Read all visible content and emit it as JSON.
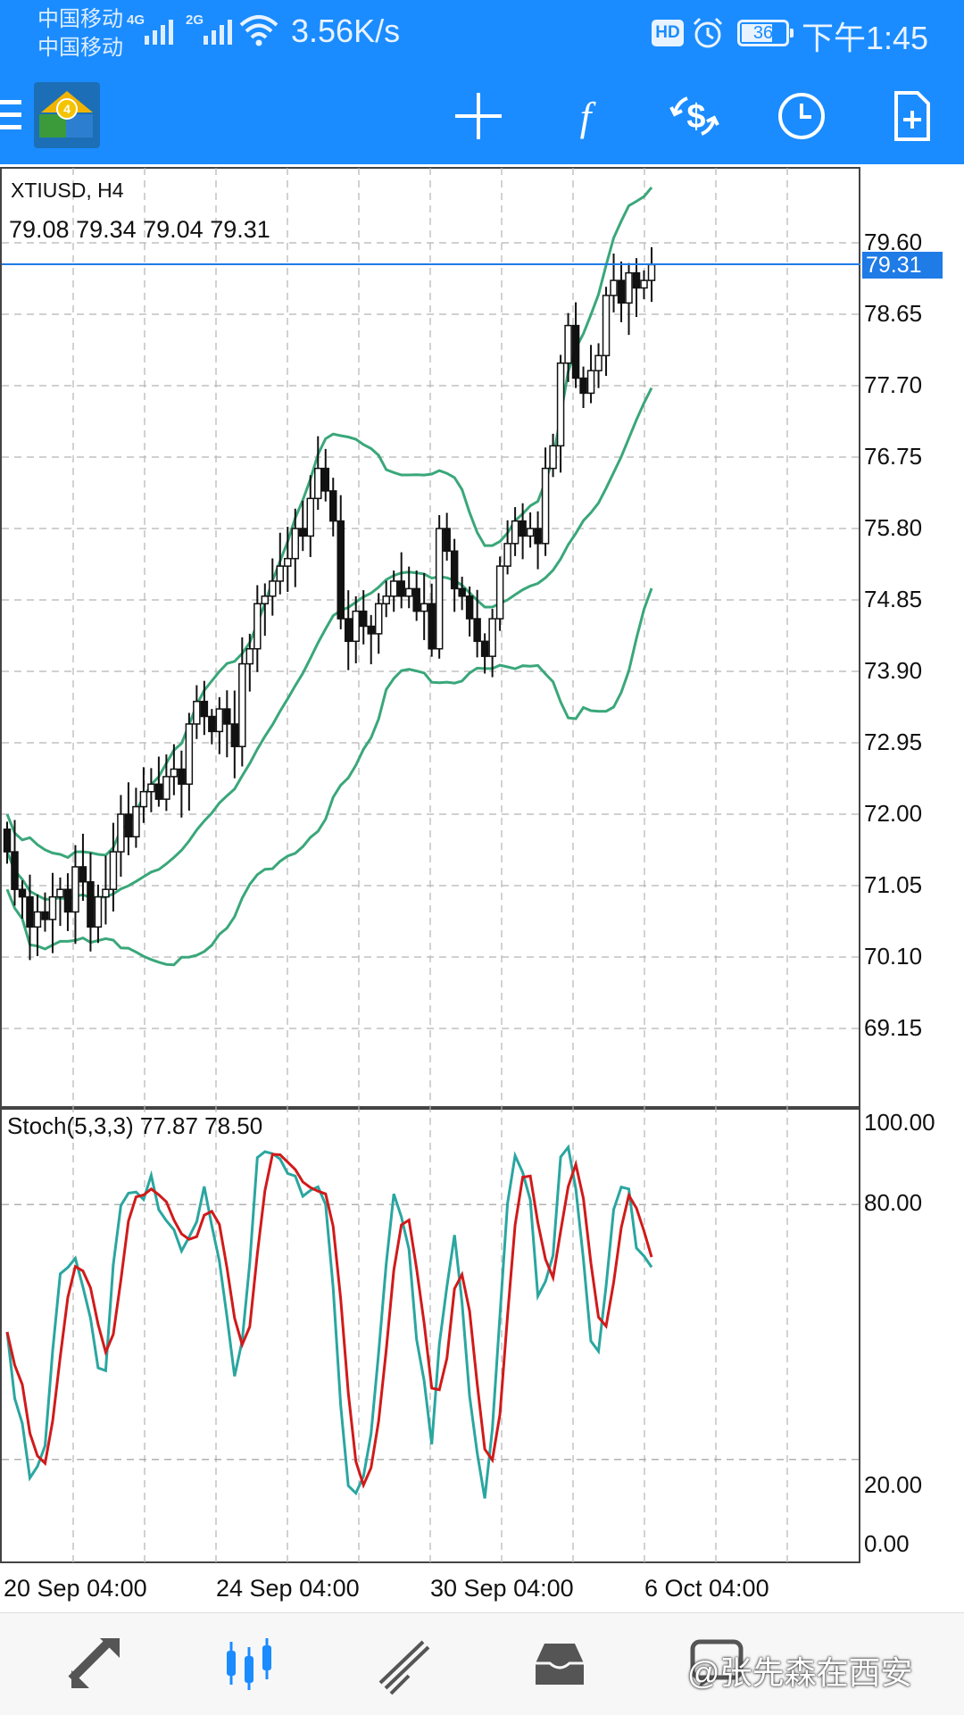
{
  "status_bar": {
    "carrier_1": "中国移动",
    "carrier_2": "中国移动",
    "sim1_network": "4G",
    "sim2_network": "2G",
    "net_speed": "3.56K/s",
    "hd_badge": "HD",
    "battery": "36",
    "time": "下午1:45"
  },
  "toolbar": {
    "icons": [
      "menu-icon",
      "app-logo",
      "crosshair-icon",
      "indicators-icon",
      "trade-icon",
      "timeframe-icon",
      "new-order-icon"
    ]
  },
  "chart": {
    "symbol_timeframe": "XTIUSD, H4",
    "ohlc": "79.08 79.34 79.04 79.31",
    "current_price": "79.31",
    "price_ticks": [
      "79.60",
      "78.65",
      "77.70",
      "76.75",
      "75.80",
      "74.85",
      "73.90",
      "72.95",
      "72.00",
      "71.05",
      "70.10",
      "69.15"
    ],
    "stoch_label": "Stoch(5,3,3) 77.87 78.50",
    "stoch_ticks": [
      "100.00",
      "80.00",
      "20.00",
      "0.00"
    ],
    "date_ticks": [
      "20 Sep 04:00",
      "24 Sep 04:00",
      "30 Sep 04:00",
      "6 Oct 04:00"
    ],
    "colors": {
      "bollinger": "#3aa77a",
      "stoch_main": "#2aa6a0",
      "stoch_signal": "#d11a1a",
      "candle_body_up": "#ffffff",
      "candle_body_down": "#111111",
      "price_line": "#1f7be6",
      "grid": "#b5b5b5"
    }
  },
  "chart_data": {
    "type": "candlestick",
    "symbol": "XTIUSD",
    "timeframe": "H4",
    "ohlc_last": {
      "open": 79.08,
      "high": 79.34,
      "low": 79.04,
      "close": 79.31
    },
    "price_axis": {
      "min": 68.6,
      "max": 80.6,
      "ticks": [
        79.6,
        78.65,
        77.7,
        76.75,
        75.8,
        74.85,
        73.9,
        72.95,
        72.0,
        71.05,
        70.1,
        69.15
      ]
    },
    "closes": [
      71.5,
      71.0,
      70.9,
      70.5,
      70.7,
      70.6,
      70.9,
      71.0,
      70.7,
      71.3,
      71.1,
      70.5,
      70.9,
      71.0,
      71.5,
      72.0,
      71.7,
      72.1,
      72.3,
      72.4,
      72.2,
      72.5,
      72.6,
      72.4,
      73.2,
      73.5,
      73.3,
      73.1,
      73.4,
      73.2,
      72.9,
      74.0,
      74.2,
      74.8,
      74.9,
      75.1,
      75.3,
      75.4,
      75.8,
      75.7,
      76.2,
      76.6,
      76.3,
      75.9,
      74.6,
      74.3,
      74.7,
      74.5,
      74.4,
      74.8,
      74.9,
      75.1,
      74.9,
      75.0,
      74.7,
      74.8,
      74.2,
      75.8,
      75.5,
      75.0,
      74.9,
      74.6,
      74.3,
      74.1,
      74.6,
      75.3,
      75.6,
      75.9,
      75.7,
      75.8,
      75.6,
      76.6,
      76.9,
      78.0,
      78.5,
      77.8,
      77.6,
      77.9,
      78.1,
      78.9,
      79.1,
      78.8,
      79.2,
      79.0,
      79.1,
      79.31
    ],
    "indicators": [
      {
        "name": "Bollinger Bands",
        "lines": [
          "upper",
          "middle",
          "lower"
        ]
      },
      {
        "name": "Stoch(5,3,3)",
        "main_last": 77.87,
        "signal_last": 78.5,
        "axis": {
          "min": 0,
          "max": 100,
          "ticks": [
            100,
            80,
            20,
            0
          ]
        }
      }
    ],
    "x_ticks": [
      "20 Sep 04:00",
      "24 Sep 04:00",
      "30 Sep 04:00",
      "6 Oct 04:00"
    ],
    "grid": true
  },
  "bottom_nav": {
    "items": [
      "quotes-icon",
      "chart-icon",
      "trade-icon",
      "history-icon",
      "messages-icon"
    ],
    "active": "chart-icon",
    "watermark": "@张先森在西安"
  }
}
